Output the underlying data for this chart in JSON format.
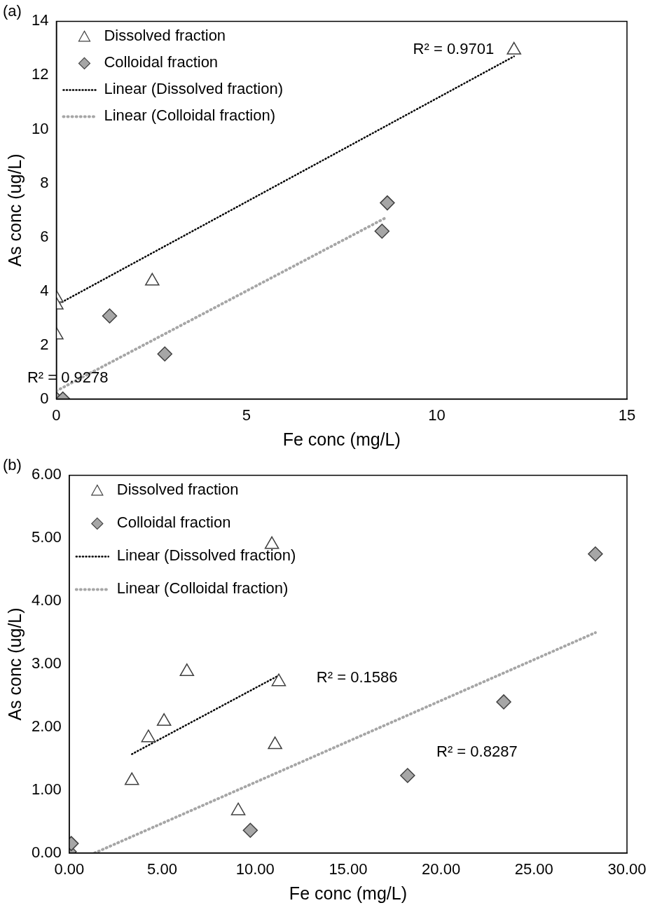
{
  "chart_data": [
    {
      "type": "scatter",
      "title": "(a)",
      "xlabel": "Fe conc (mg/L)",
      "ylabel": "As conc (ug/L)",
      "xlim": [
        0,
        15
      ],
      "xticks": [
        0,
        5,
        10,
        15
      ],
      "ylim": [
        0,
        14
      ],
      "yticks": [
        0,
        2,
        4,
        6,
        8,
        10,
        12,
        14
      ],
      "grid": false,
      "legend": "top left",
      "series": [
        {
          "name": "Dissolved fraction",
          "type": "scatter",
          "marker": "triangle",
          "color": "#ffffff",
          "x": [
            0,
            0,
            0,
            2.52,
            12.03
          ],
          "values": [
            3.74,
            3.48,
            2.37,
            4.37,
            12.93
          ]
        },
        {
          "name": "Colloidal fraction",
          "type": "scatter",
          "marker": "diamond",
          "color": "#a6a6a6",
          "x": [
            0,
            0.17,
            1.4,
            2.85,
            8.56,
            8.7
          ],
          "values": [
            0,
            0,
            3.08,
            1.67,
            6.22,
            7.27
          ]
        },
        {
          "name": "Linear (Dissolved fraction)",
          "type": "line",
          "marker": "none",
          "line_style": "dotted",
          "color": "#000000",
          "x": [
            0,
            12.03
          ],
          "values": [
            3.48,
            12.7
          ]
        },
        {
          "name": "Linear (Colloidal fraction)",
          "type": "line",
          "marker": "none",
          "line_style": "dotted",
          "color": "#a6a6a6",
          "x": [
            0,
            8.7
          ],
          "values": [
            0.3,
            6.75
          ]
        }
      ],
      "annotations": [
        "R² = 0.9701",
        "R² = 0.9278"
      ]
    },
    {
      "type": "scatter",
      "title": "(b)",
      "xlabel": "Fe conc (mg/L)",
      "ylabel": "As conc (ug/L)",
      "xlim": [
        0,
        30
      ],
      "xticks": [
        {
          "value": 0,
          "label": "0.00"
        },
        {
          "value": 5,
          "label": "5.00"
        },
        {
          "value": 10,
          "label": "10.00"
        },
        {
          "value": 15,
          "label": "15.00"
        },
        {
          "value": 20,
          "label": "20.00"
        },
        {
          "value": 25,
          "label": "25.00"
        },
        {
          "value": 30,
          "label": "30.00"
        }
      ],
      "ylim": [
        0,
        6
      ],
      "yticks": [
        {
          "value": 0,
          "label": "0.00"
        },
        {
          "value": 1,
          "label": "1.00"
        },
        {
          "value": 2,
          "label": "2.00"
        },
        {
          "value": 3,
          "label": "3.00"
        },
        {
          "value": 4,
          "label": "4.00"
        },
        {
          "value": 5,
          "label": "5.00"
        },
        {
          "value": 6,
          "label": "6.00"
        }
      ],
      "grid": false,
      "legend": "top left",
      "series": [
        {
          "name": "Dissolved fraction",
          "type": "scatter",
          "marker": "triangle",
          "color": "#ffffff",
          "x": [
            3.37,
            4.26,
            5.1,
            6.33,
            10.9,
            11.27,
            11.07,
            9.09
          ],
          "values": [
            1.15,
            1.83,
            2.09,
            2.88,
            4.9,
            2.72,
            1.72,
            0.67
          ]
        },
        {
          "name": "Colloidal fraction",
          "type": "scatter",
          "marker": "diamond",
          "color": "#a6a6a6",
          "x": [
            0,
            0.11,
            9.74,
            18.2,
            23.37,
            28.3
          ],
          "values": [
            0.02,
            0.15,
            0.36,
            1.23,
            2.4,
            4.75
          ]
        },
        {
          "name": "Linear (Dissolved fraction)",
          "type": "line",
          "marker": "none",
          "line_style": "dotted",
          "color": "#000000",
          "x": [
            3.37,
            11.27
          ],
          "values": [
            1.57,
            2.82
          ]
        },
        {
          "name": "Linear (Colloidal fraction)",
          "type": "line",
          "marker": "none",
          "line_style": "dotted",
          "color": "#a6a6a6",
          "x": [
            1.37,
            28.3
          ],
          "values": [
            0,
            3.5
          ]
        }
      ],
      "annotations": [
        "R² = 0.1586",
        "R² = 0.8287"
      ]
    }
  ]
}
